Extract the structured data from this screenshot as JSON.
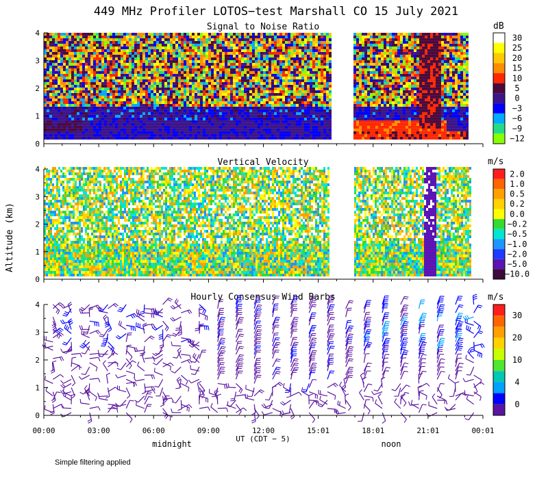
{
  "title": "449 MHz Profiler LOTOS−test Marshall CO 15 July 2021",
  "ylabel": "Altitude (km)",
  "xlabel": "UT  (CDT − 5)",
  "midnight_label": "midnight",
  "noon_label": "noon",
  "footnote": "Simple filtering applied",
  "x_ticks": [
    "00:00",
    "03:00",
    "06:00",
    "09:00",
    "12:00",
    "15:01",
    "18:01",
    "21:01",
    "00:01"
  ],
  "y_ticks": [
    "0",
    "1",
    "2",
    "3",
    "4"
  ],
  "chart_data": [
    {
      "type": "heatmap",
      "title": "Signal to Noise Ratio",
      "units": "dB",
      "xlabel": "UT (CDT - 5)",
      "ylabel": "Altitude (km)",
      "xlim": [
        0,
        24
      ],
      "ylim": [
        0,
        4
      ],
      "data_gap_hours": [
        15.6,
        16.9
      ],
      "data_range_km": [
        0.15,
        4.0
      ],
      "colorbar": {
        "labels": [
          "30",
          "25",
          "20",
          "15",
          "10",
          "5",
          "0",
          "−3",
          "−6",
          "−9",
          "−12"
        ],
        "colors": [
          "#ffffff",
          "#ffff00",
          "#ffc800",
          "#ff8c00",
          "#ff2800",
          "#4a0a3c",
          "#3c148c",
          "#0000ff",
          "#00aaff",
          "#22dd88",
          "#88ff00"
        ]
      }
    },
    {
      "type": "heatmap",
      "title": "Vertical Velocity",
      "units": "m/s",
      "xlabel": "UT (CDT - 5)",
      "ylabel": "Altitude (km)",
      "xlim": [
        0,
        24
      ],
      "ylim": [
        0,
        4
      ],
      "data_gap_hours": [
        15.6,
        16.9
      ],
      "colorbar": {
        "labels": [
          "2.0",
          "1.0",
          "0.5",
          "0.2",
          "0.0",
          "−0.2",
          "−0.5",
          "−1.0",
          "−2.0",
          "−5.0",
          "−10.0"
        ],
        "colors": [
          "#ff1e1e",
          "#ff6400",
          "#ffa000",
          "#ffd200",
          "#ffff00",
          "#32dc32",
          "#00e6d2",
          "#1e96ff",
          "#1e3cff",
          "#5a14b4",
          "#3c0a3c"
        ]
      }
    },
    {
      "type": "scatter",
      "title": "Hourly Consensus Wind Barbs",
      "units": "m/s",
      "xlabel": "UT (CDT - 5)",
      "ylabel": "Altitude (km)",
      "xlim": [
        0,
        24
      ],
      "ylim": [
        0,
        4
      ],
      "colorbar": {
        "labels": [
          "30",
          "20",
          "10",
          "4",
          "0"
        ],
        "colors": [
          "#ff1e1e",
          "#ff6400",
          "#ffa000",
          "#ffd200",
          "#c8ff00",
          "#50e632",
          "#00c8b4",
          "#00a0ff",
          "#0000ff",
          "#5a14a0"
        ]
      }
    }
  ]
}
